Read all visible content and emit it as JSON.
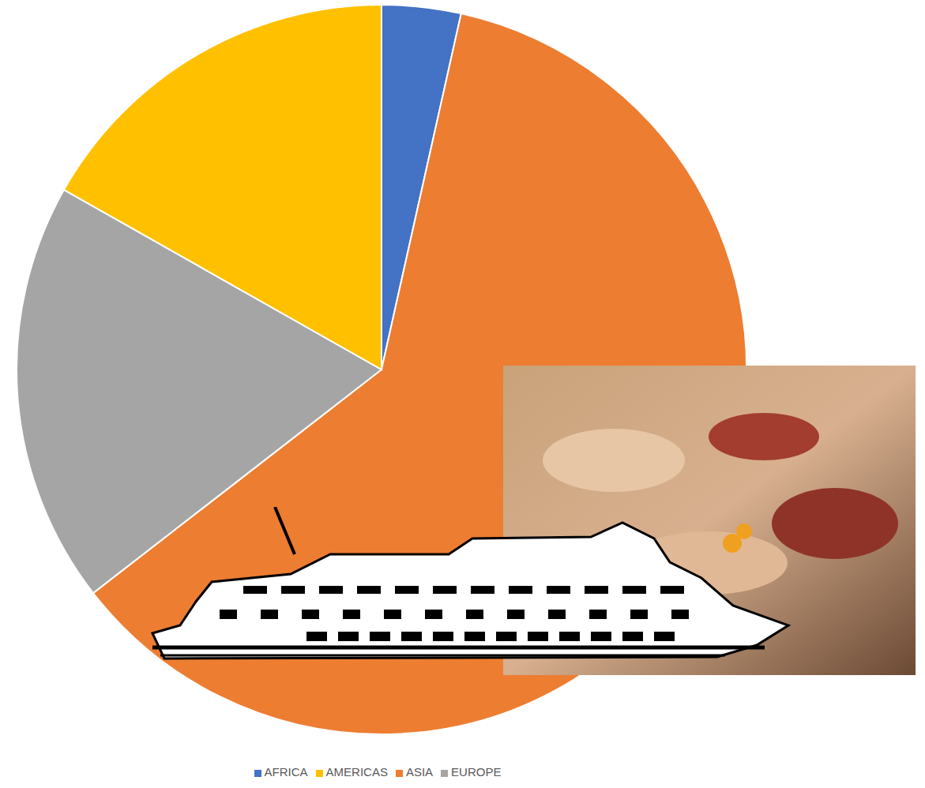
{
  "chart_data": {
    "type": "pie",
    "categories": [
      "AFRICA",
      "ASIA",
      "EUROPE",
      "AMERICAS"
    ],
    "values": [
      3.5,
      61,
      18.7,
      16.8
    ],
    "colors": [
      "#4472c4",
      "#ed7d31",
      "#a5a5a5",
      "#ffc000"
    ],
    "legend": "bottom"
  }
}
